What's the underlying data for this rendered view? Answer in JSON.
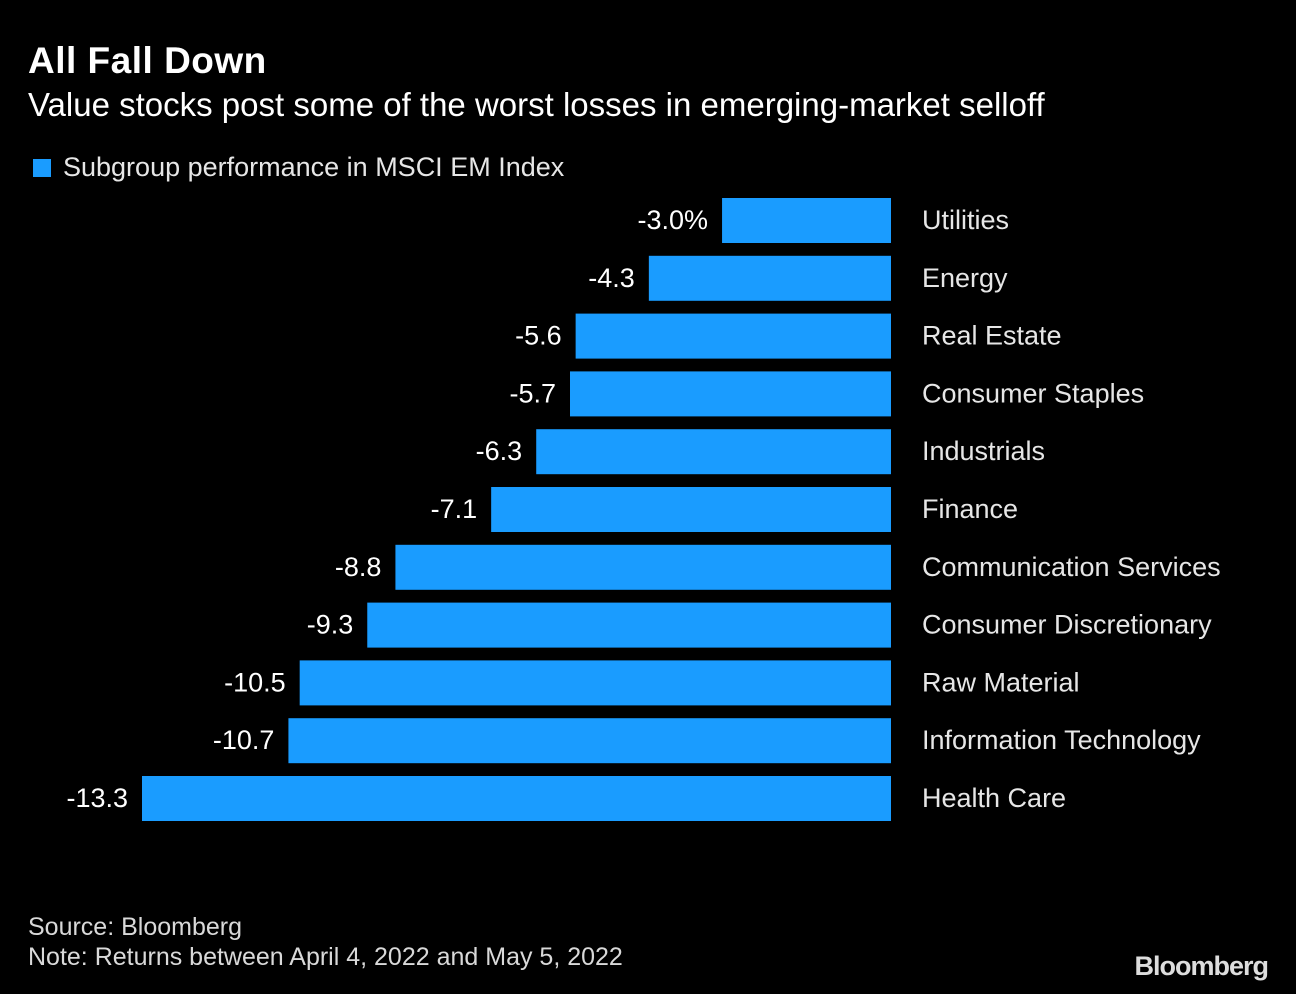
{
  "title": "All Fall Down",
  "subtitle": "Value stocks post some of the worst losses in emerging-market selloff",
  "source": "Source: Bloomberg",
  "note": "Note: Returns between April 4, 2022 and May 5, 2022",
  "logo": "Bloomberg",
  "colors": {
    "bar": "#1a9cff",
    "background": "#000000"
  },
  "chart_data": {
    "type": "bar",
    "orientation": "horizontal",
    "legend": "Subgroup performance in MSCI EM Index",
    "legend_position": "top-left",
    "unit": "%",
    "grid": false,
    "xlim": [
      -13.3,
      0
    ],
    "categories": [
      "Utilities",
      "Energy",
      "Real Estate",
      "Consumer Staples",
      "Industrials",
      "Finance",
      "Communication Services",
      "Consumer Discretionary",
      "Raw Material",
      "Information Technology",
      "Health Care"
    ],
    "values": [
      -3.0,
      -4.3,
      -5.6,
      -5.7,
      -6.3,
      -7.1,
      -8.8,
      -9.3,
      -10.5,
      -10.7,
      -13.3
    ],
    "labels": [
      "-3.0%",
      "-4.3",
      "-5.6",
      "-5.7",
      "-6.3",
      "-7.1",
      "-8.8",
      "-9.3",
      "-10.5",
      "-10.7",
      "-13.3"
    ]
  }
}
